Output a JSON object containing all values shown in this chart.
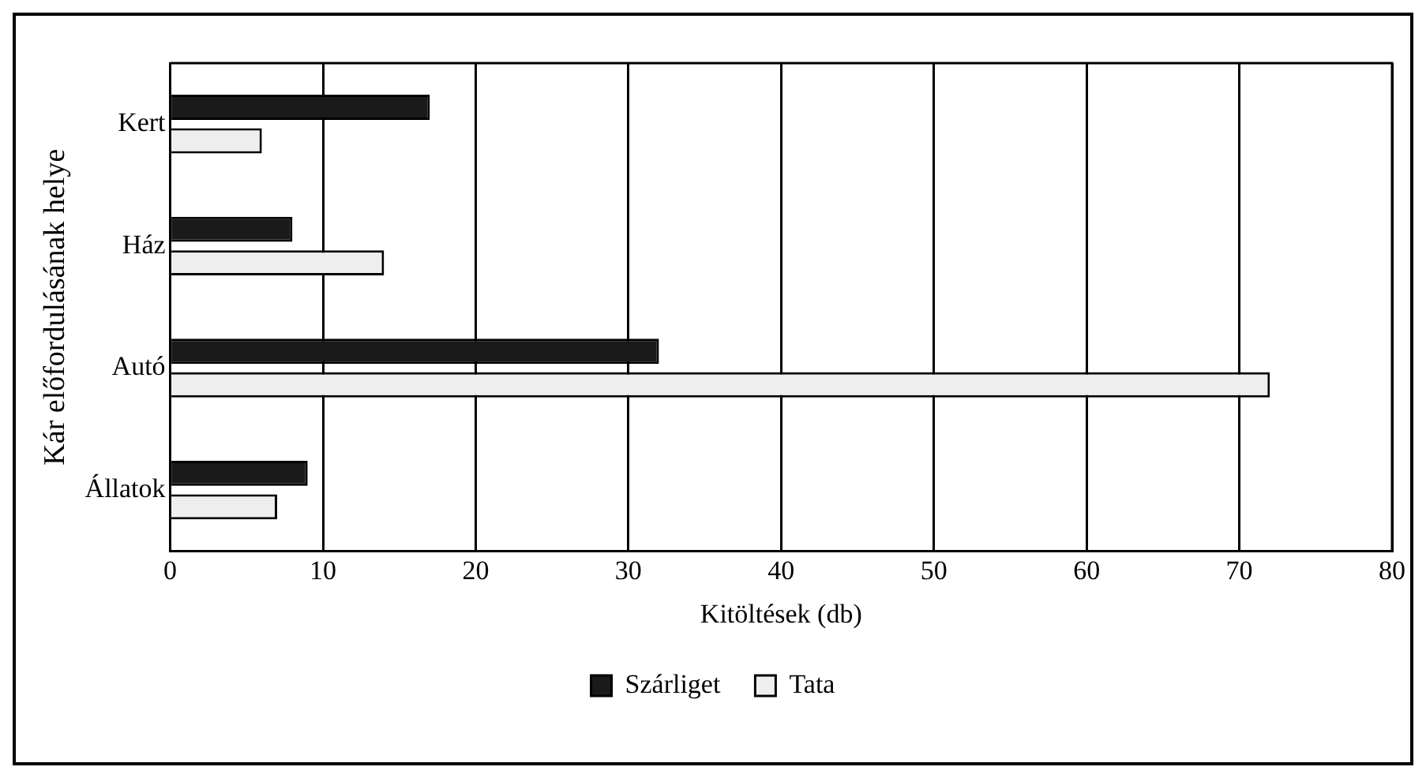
{
  "chart_data": {
    "type": "bar",
    "orientation": "horizontal",
    "categories": [
      "Kert",
      "Ház",
      "Autó",
      "Állatok"
    ],
    "series": [
      {
        "name": "Szárliget",
        "color": "#1a1a1a",
        "values": [
          17,
          8,
          32,
          9
        ]
      },
      {
        "name": "Tata",
        "color": "#eeeeee",
        "values": [
          6,
          14,
          72,
          7
        ]
      }
    ],
    "xlabel": "Kitöltések (db)",
    "ylabel": "Kár előfordulásának helye",
    "xlim": [
      0,
      80
    ],
    "xticks": [
      0,
      10,
      20,
      30,
      40,
      50,
      60,
      70,
      80
    ],
    "grid": "x",
    "legend": "bottom"
  }
}
